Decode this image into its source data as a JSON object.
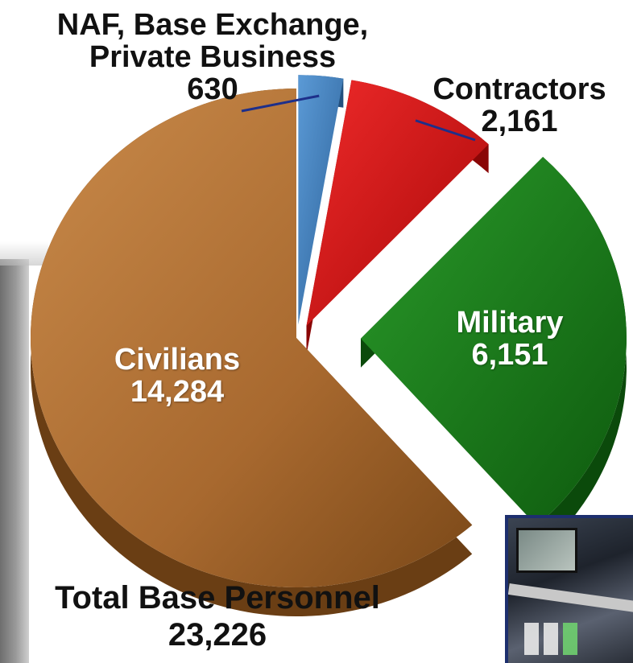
{
  "chart_data": {
    "type": "pie",
    "title": "",
    "slices": [
      {
        "label_lines": [
          "NAF, Base Exchange,",
          "Private Business"
        ],
        "value": 630,
        "value_text": "630",
        "color": "#3a7bbd"
      },
      {
        "label_lines": [
          "Contractors"
        ],
        "value": 2161,
        "value_text": "2,161",
        "color": "#d01010"
      },
      {
        "label_lines": [
          "Military"
        ],
        "value": 6151,
        "value_text": "6,151",
        "color": "#1e7a1e"
      },
      {
        "label_lines": [
          "Civilians"
        ],
        "value": 14284,
        "value_text": "14,284",
        "color": "#a8692f"
      }
    ],
    "total_label": "Total Base Personnel",
    "total_value": "23,226"
  },
  "decor": {
    "inset_photo_icon": "aircraft-console-photo"
  }
}
